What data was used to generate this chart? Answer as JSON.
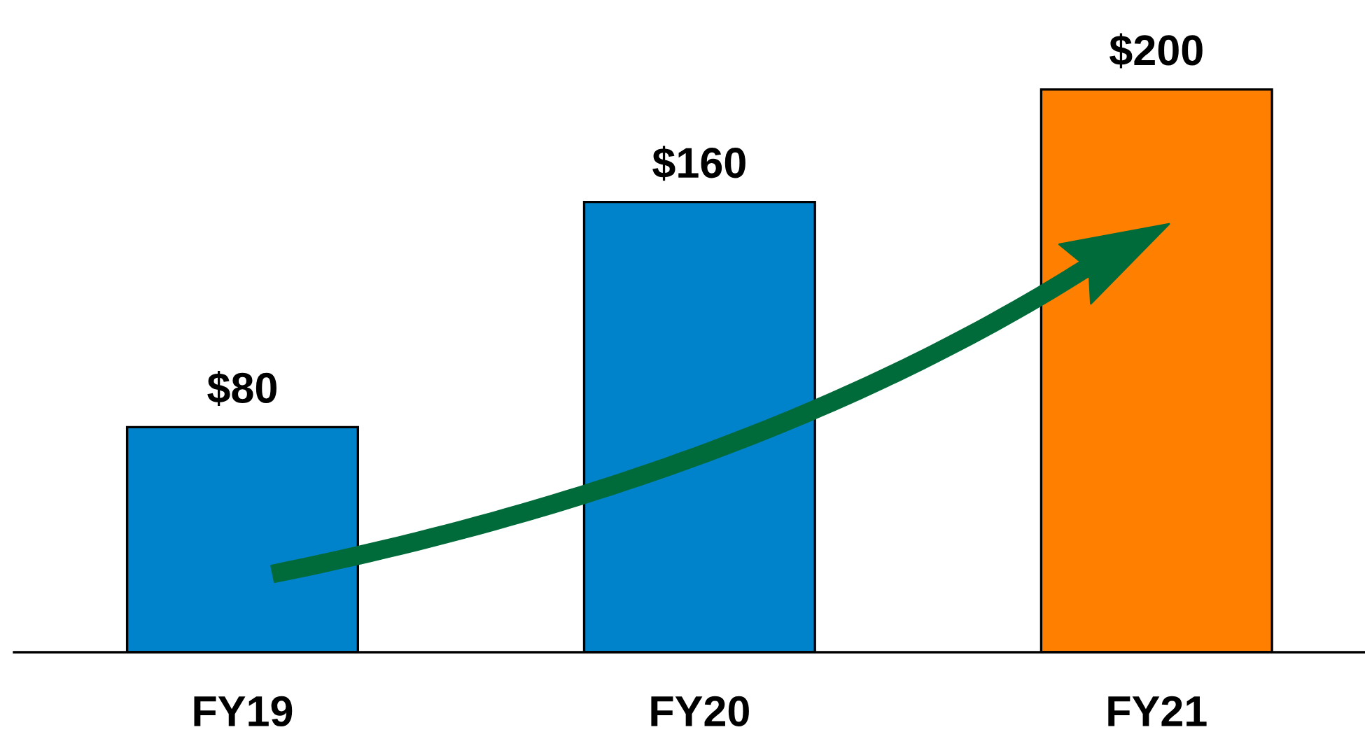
{
  "chart_data": {
    "type": "bar",
    "categories": [
      "FY19",
      "FY20",
      "FY21"
    ],
    "values": [
      80,
      160,
      200
    ],
    "colors": [
      "#0083ca",
      "#0083ca",
      "#ff8000"
    ],
    "value_labels": [
      "$80",
      "$160",
      "$200"
    ],
    "grid": false,
    "legend": false
  }
}
